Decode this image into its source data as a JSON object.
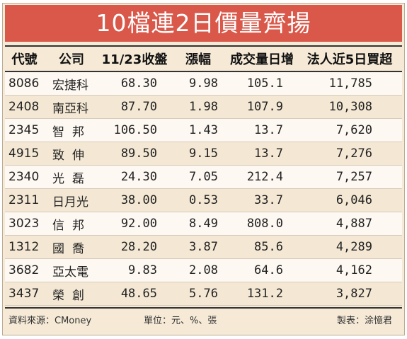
{
  "title": "10檔連2日價量齊揚",
  "headers": {
    "code": "代號",
    "name": "公司",
    "close": "11/23收盤",
    "change": "漲幅",
    "volume": "成交量日增",
    "institutional": "法人近5日買超"
  },
  "rows": [
    {
      "code": "8086",
      "name": "宏捷科",
      "close": "68.30",
      "change": "9.98",
      "volume": "105.1",
      "institutional": "11,785"
    },
    {
      "code": "2408",
      "name": "南亞科",
      "close": "87.70",
      "change": "1.98",
      "volume": "107.9",
      "institutional": "10,308"
    },
    {
      "code": "2345",
      "name": "智邦",
      "close": "106.50",
      "change": "1.43",
      "volume": "13.7",
      "institutional": "7,620"
    },
    {
      "code": "4915",
      "name": "致伸",
      "close": "89.50",
      "change": "9.15",
      "volume": "13.7",
      "institutional": "7,276"
    },
    {
      "code": "2340",
      "name": "光磊",
      "close": "24.30",
      "change": "7.05",
      "volume": "212.4",
      "institutional": "7,257"
    },
    {
      "code": "2311",
      "name": "日月光",
      "close": "38.00",
      "change": "0.53",
      "volume": "33.7",
      "institutional": "6,046"
    },
    {
      "code": "3023",
      "name": "信邦",
      "close": "92.00",
      "change": "8.49",
      "volume": "808.0",
      "institutional": "4,887"
    },
    {
      "code": "1312",
      "name": "國喬",
      "close": "28.20",
      "change": "3.87",
      "volume": "85.6",
      "institutional": "4,289"
    },
    {
      "code": "3682",
      "name": "亞太電",
      "close": "9.83",
      "change": "2.08",
      "volume": "64.6",
      "institutional": "4,162"
    },
    {
      "code": "3437",
      "name": "榮創",
      "close": "48.65",
      "change": "5.76",
      "volume": "131.2",
      "institutional": "3,827"
    }
  ],
  "footer": {
    "source": "資料來源：CMoney",
    "unit": "單位：元、%、張",
    "maker": "製表：涂憶君"
  },
  "colors": {
    "title_bg": "#d9584a",
    "row_light": "#fdf8f1",
    "row_dark": "#f4e8d4"
  }
}
